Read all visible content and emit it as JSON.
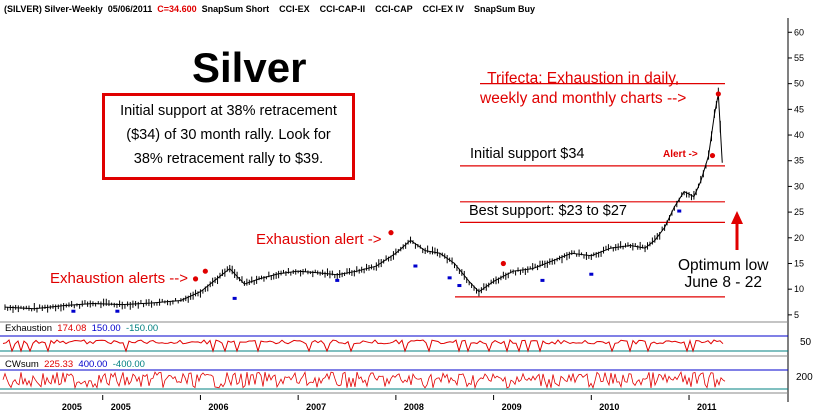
{
  "header": {
    "symbol": "(SILVER) Silver-Weekly",
    "date": "05/06/2011",
    "close": "C=34.600",
    "studies": "SnapSum Short    CCI-EX    CCI-CAP-II    CCI-CAP    CCI-EX IV    SnapSum Buy"
  },
  "title": "Silver",
  "box_lines": [
    "Initial support at 38% retracement",
    "($34) of 30 month rally.  Look for",
    "38% retracement rally to $39."
  ],
  "annotations": {
    "exhaustion_alerts": "Exhaustion alerts -->",
    "exhaustion_alert": "Exhaustion alert ->",
    "trifecta_line1": "Trifecta: Exhaustion in daily,",
    "trifecta_line2": "weekly and monthly charts -->",
    "alert": "Alert ->",
    "initial_support": "Initial support $34",
    "best_support": "Best support: $23 to $27",
    "optimum_line1": "Optimum low",
    "optimum_line2": "June 8 - 22"
  },
  "indicators": {
    "exhaustion": {
      "name": "Exhaustion",
      "v1": "174.08",
      "v2": "150.00",
      "v3": "-150.00",
      "axis_tick": "50"
    },
    "cwsum": {
      "name": "CWsum",
      "v1": "225.33",
      "v2": "400.00",
      "v3": "-400.00",
      "axis_tick": "200"
    }
  },
  "colors": {
    "red": "#e00000",
    "blue": "#0000cc",
    "teal": "#008080",
    "price": "#000000"
  },
  "chart_data": {
    "type": "line",
    "title": "Silver",
    "y_ticks": [
      5,
      10,
      15,
      20,
      25,
      30,
      35,
      40,
      45,
      50,
      55,
      60
    ],
    "x_ticks": [
      "2005",
      "2005",
      "2006",
      "2007",
      "2008",
      "2009",
      "2010",
      "2011"
    ],
    "ylim": [
      4,
      62
    ],
    "x_years": [
      2004.0,
      2011.45
    ],
    "x_tick_positions": [
      2004.5,
      2005.0,
      2006.0,
      2007.0,
      2008.0,
      2009.0,
      2010.0,
      2011.0
    ],
    "support_lines": [
      8.5,
      23,
      27,
      34,
      50
    ],
    "series": [
      {
        "x": [
          2004.0,
          2004.3,
          2004.6,
          2004.9,
          2005.2,
          2005.5,
          2005.8,
          2006.0,
          2006.2,
          2006.3,
          2006.45,
          2006.6,
          2006.8,
          2007.0,
          2007.2,
          2007.4,
          2007.6,
          2007.8,
          2008.0,
          2008.15,
          2008.3,
          2008.45,
          2008.6,
          2008.75,
          2008.85,
          2009.0,
          2009.2,
          2009.4,
          2009.6,
          2009.8,
          2010.0,
          2010.2,
          2010.4,
          2010.55,
          2010.65,
          2010.75,
          2010.85,
          2010.95,
          2011.05,
          2011.12,
          2011.2,
          2011.26,
          2011.3,
          2011.34
        ],
        "values": [
          6.5,
          6.2,
          6.8,
          7.2,
          7.0,
          7.3,
          7.8,
          9.5,
          12.5,
          14.0,
          11.0,
          12.0,
          13.0,
          13.5,
          13.2,
          12.8,
          13.5,
          14.5,
          17.0,
          19.5,
          17.5,
          17.0,
          15.0,
          11.5,
          9.5,
          11.5,
          13.5,
          14.0,
          15.5,
          17.0,
          16.5,
          18.0,
          18.5,
          18.0,
          19.5,
          22.0,
          26.0,
          29.0,
          28.0,
          31.0,
          36.0,
          44.0,
          48.0,
          34.6
        ]
      }
    ]
  }
}
